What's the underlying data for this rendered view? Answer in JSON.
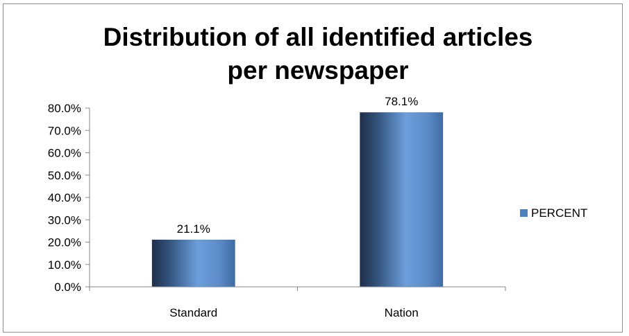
{
  "chart_data": {
    "type": "bar",
    "title_lines": [
      "Distribution of all identified articles",
      "per newspaper"
    ],
    "categories": [
      "Standard",
      "Nation"
    ],
    "series": [
      {
        "name": "PERCENT",
        "values": [
          21.1,
          78.1
        ],
        "color": "#4f81bd"
      }
    ],
    "data_labels": [
      "21.1%",
      "78.1%"
    ],
    "y_ticks": [
      "0.0%",
      "10.0%",
      "20.0%",
      "30.0%",
      "40.0%",
      "50.0%",
      "60.0%",
      "70.0%",
      "80.0%"
    ],
    "ylim": [
      0,
      80
    ],
    "grid": false,
    "legend_position": "right"
  }
}
